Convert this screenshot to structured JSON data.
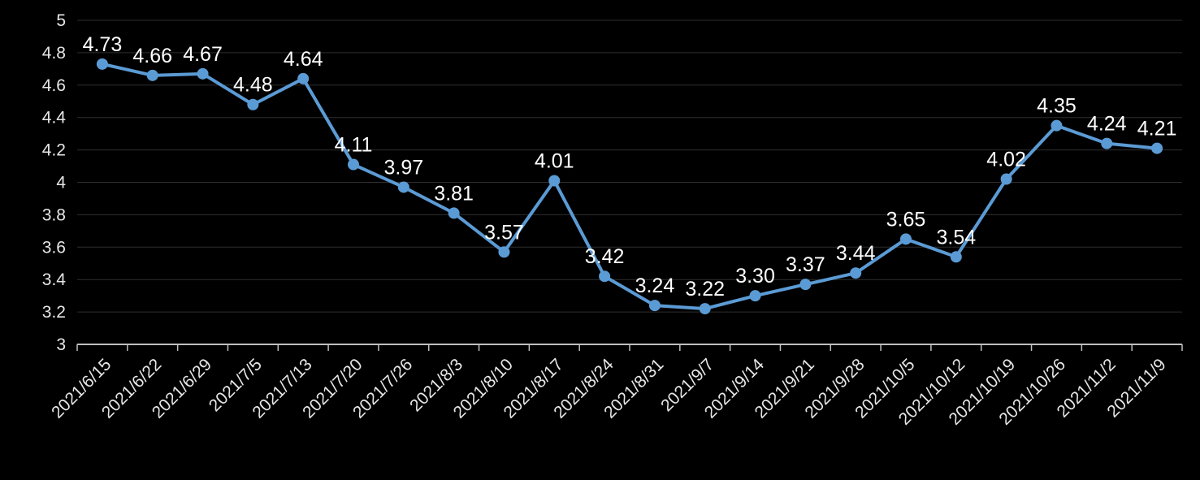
{
  "chart_data": {
    "type": "line",
    "title": "",
    "xlabel": "",
    "ylabel": "",
    "categories": [
      "2021/6/15",
      "2021/6/22",
      "2021/6/29",
      "2021/7/5",
      "2021/7/13",
      "2021/7/20",
      "2021/7/26",
      "2021/8/3",
      "2021/8/10",
      "2021/8/17",
      "2021/8/24",
      "2021/8/31",
      "2021/9/7",
      "2021/9/14",
      "2021/9/21",
      "2021/9/28",
      "2021/10/5",
      "2021/10/12",
      "2021/10/19",
      "2021/10/26",
      "2021/11/2",
      "2021/11/9"
    ],
    "values": [
      4.73,
      4.66,
      4.67,
      4.48,
      4.64,
      4.11,
      3.97,
      3.81,
      3.57,
      4.01,
      3.42,
      3.24,
      3.22,
      3.3,
      3.37,
      3.44,
      3.65,
      3.54,
      4.02,
      4.35,
      4.24,
      4.21
    ],
    "data_labels": [
      "4.73",
      "4.66",
      "4.67",
      "4.48",
      "4.64",
      "4.11",
      "3.97",
      "3.81",
      "3.57",
      "4.01",
      "3.42",
      "3.24",
      "3.22",
      "3.30",
      "3.37",
      "3.44",
      "3.65",
      "3.54",
      "4.02",
      "4.35",
      "4.24",
      "4.21"
    ],
    "ylim": [
      3,
      5
    ],
    "ytick_step": 0.2,
    "ytick_labels": [
      "3",
      "3.2",
      "3.4",
      "3.6",
      "3.8",
      "4",
      "4.2",
      "4.4",
      "4.6",
      "4.8",
      "5"
    ],
    "grid": true,
    "legend": "none",
    "x_label_rotation_deg": -45,
    "colors": {
      "background": "#000000",
      "line": "#5B9BD5",
      "marker": "#5B9BD5",
      "data_label": "#FFFFFF",
      "axis_label": "#E6E6E6",
      "gridline": "#2E2E2E",
      "axis_line": "#BFBFBF"
    }
  }
}
